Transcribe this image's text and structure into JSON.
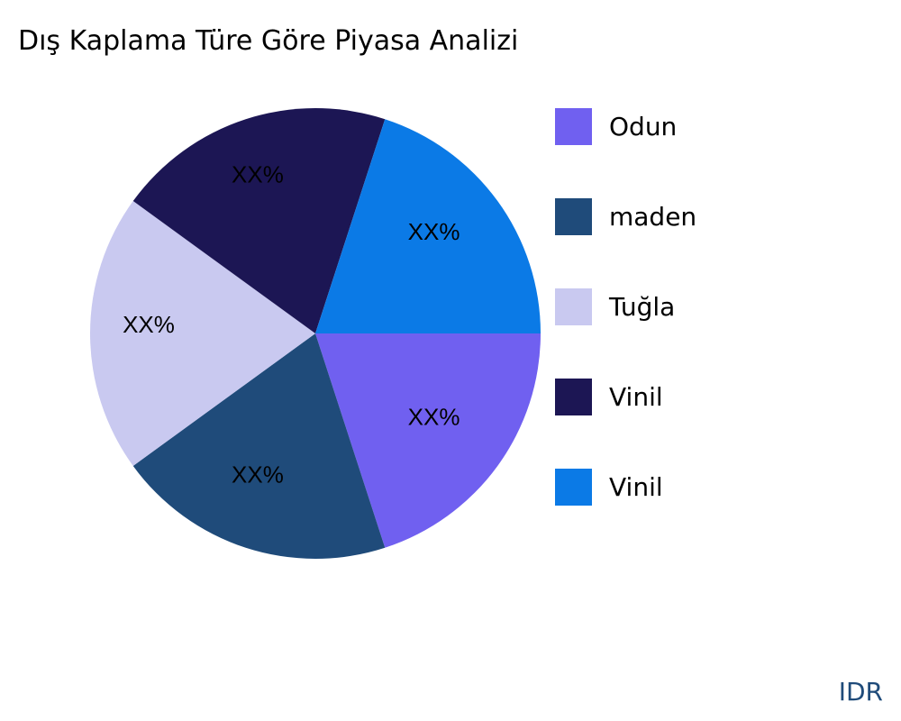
{
  "chart_data": {
    "type": "pie",
    "title": "Dış Kaplama Türe Göre Piyasa Analizi",
    "categories": [
      "Odun",
      "maden",
      "Tuğla",
      "Vinil",
      "Vinil"
    ],
    "values": [
      20,
      20,
      20,
      20,
      20
    ],
    "data_labels": [
      "XX%",
      "XX%",
      "XX%",
      "XX%",
      "XX%"
    ],
    "colors": [
      "#7060f0",
      "#1f4b7a",
      "#c9c9f0",
      "#1c1654",
      "#0b7ae6"
    ],
    "legend_position": "right"
  },
  "brand": "IDR"
}
